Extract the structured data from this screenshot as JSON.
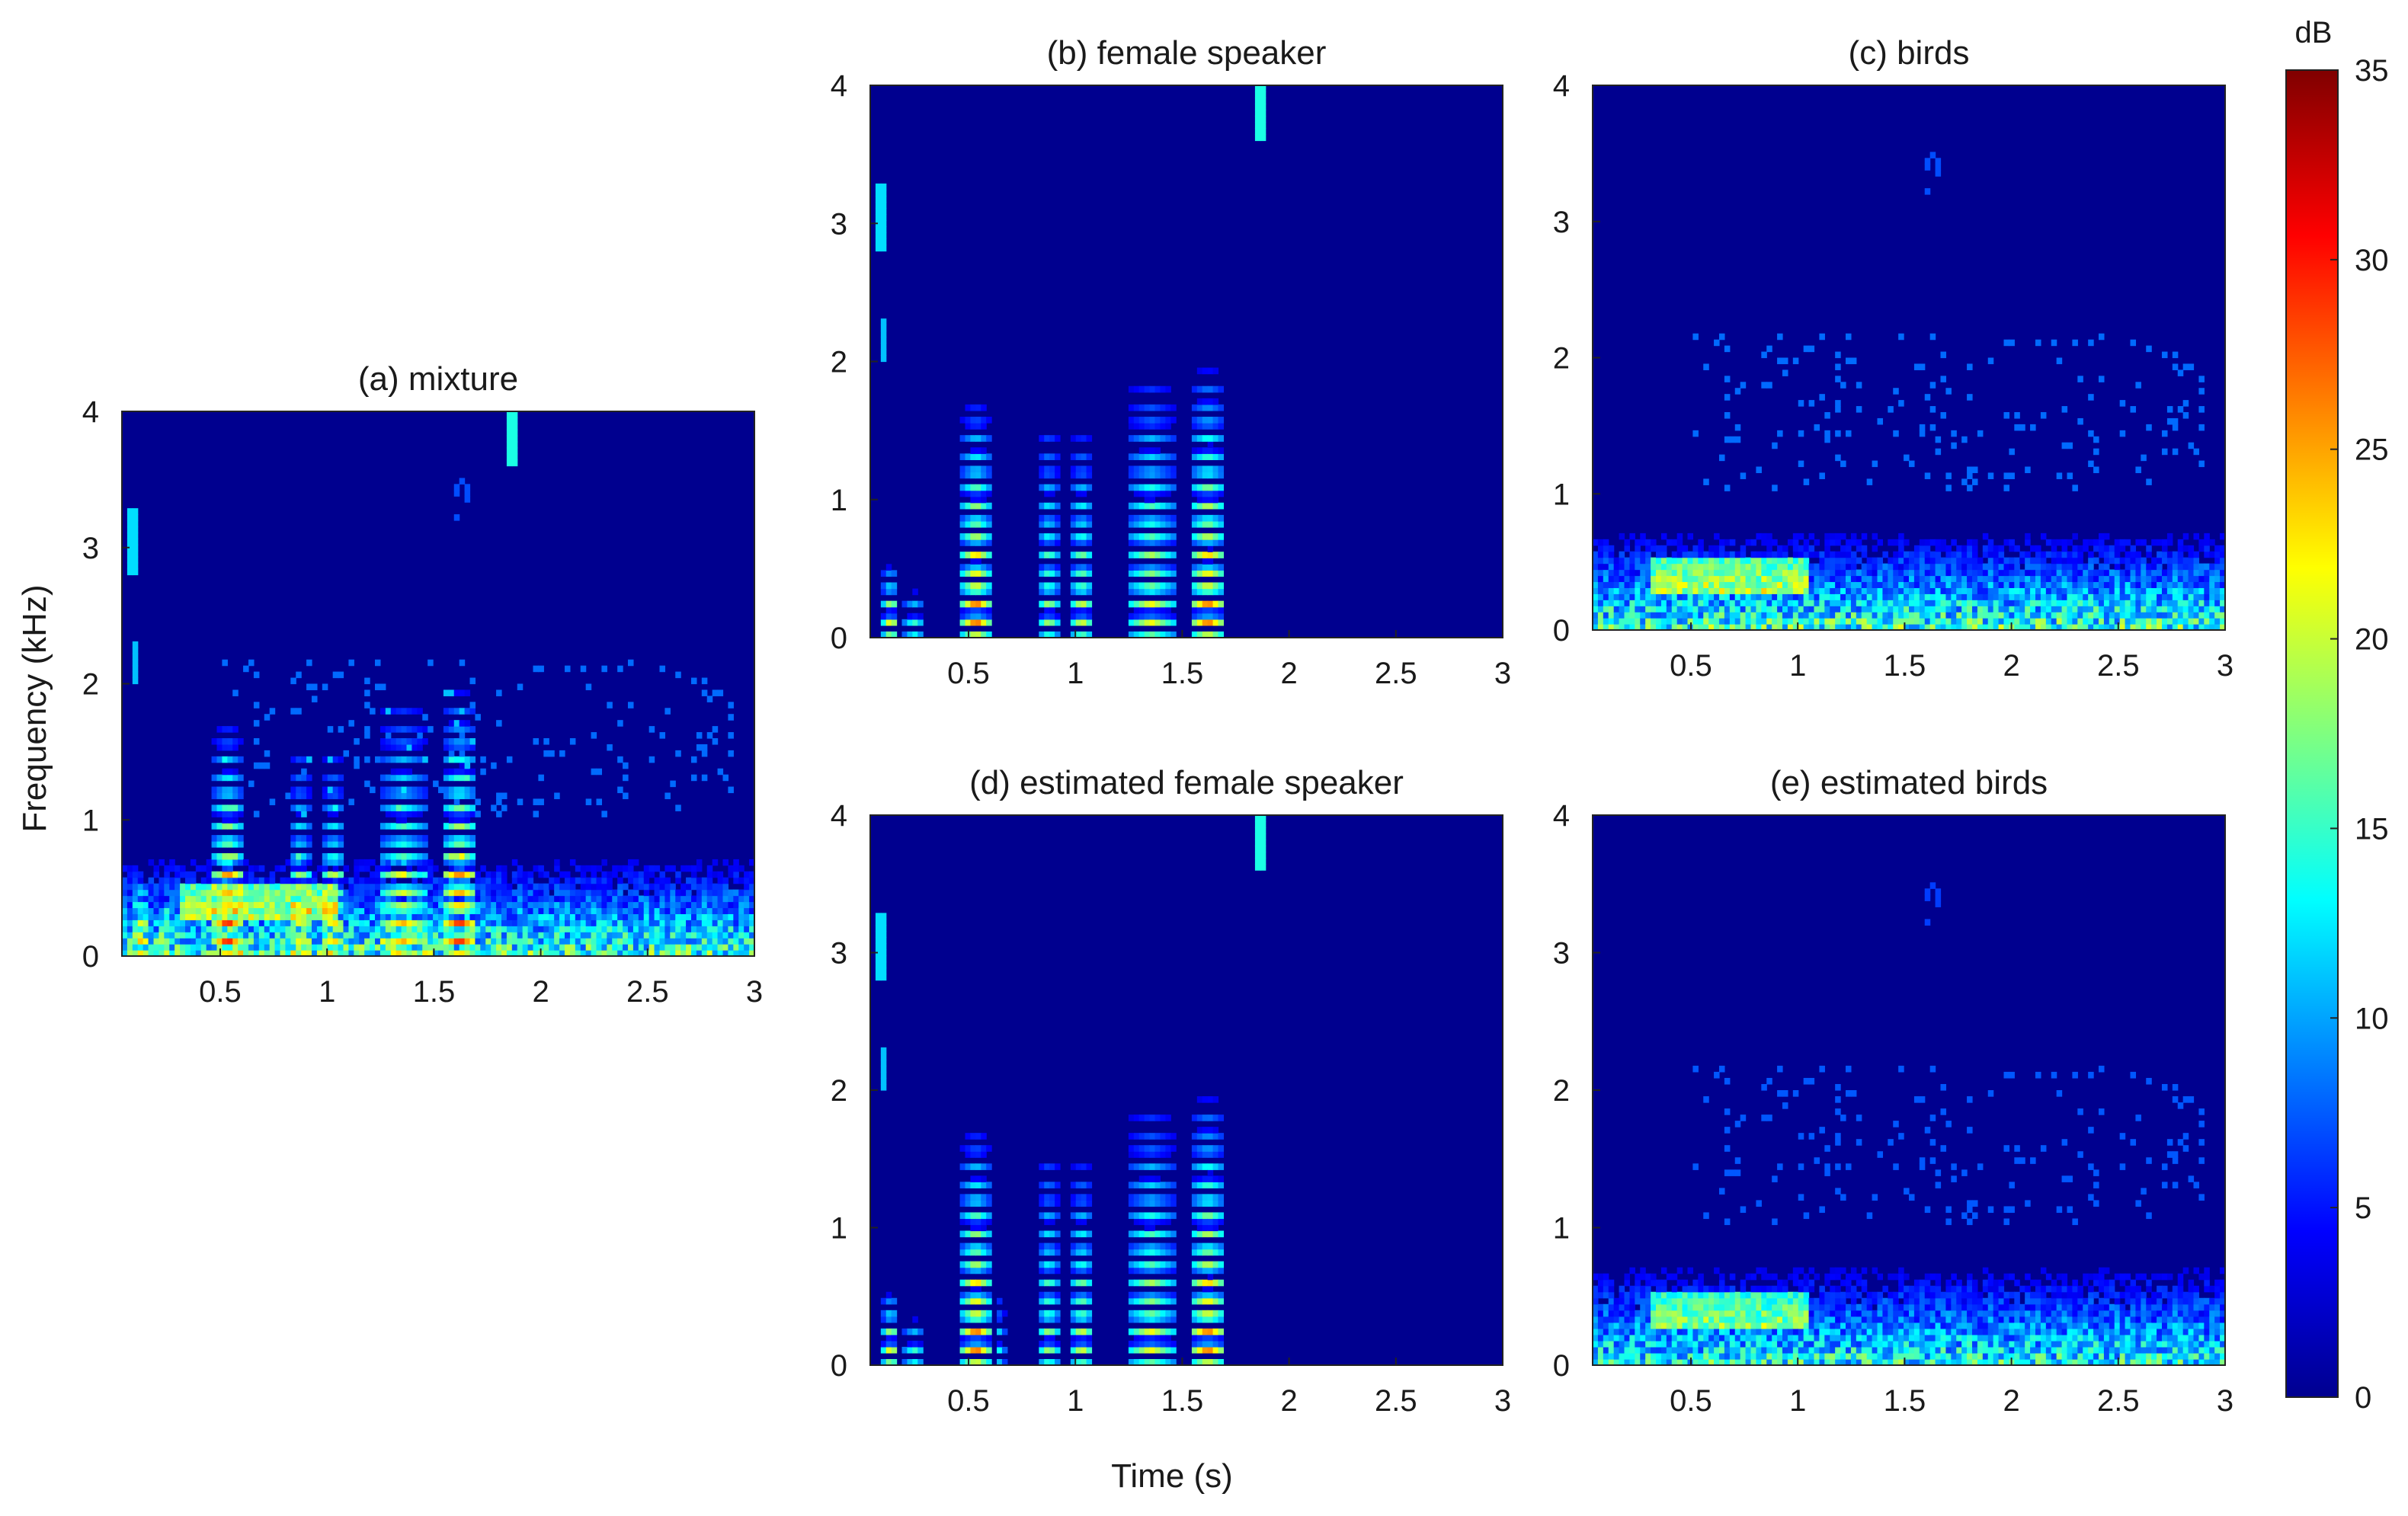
{
  "figure": {
    "ylabel": "Frequency (kHz)",
    "xlabel": "Time (s)",
    "colormap": "jet"
  },
  "colorbar": {
    "label": "dB",
    "range": [
      0,
      35
    ],
    "ticks": [
      0,
      5,
      10,
      15,
      20,
      25,
      30,
      35
    ]
  },
  "chart_data": [
    {
      "type": "heatmap",
      "title": "(a) mixture",
      "xlim": [
        0.04,
        3.0
      ],
      "ylim": [
        0,
        4
      ],
      "xticks": [
        0.5,
        1,
        1.5,
        2,
        2.5,
        3
      ],
      "yticks": [
        0,
        1,
        2,
        3,
        4
      ],
      "xlabel": "",
      "ylabel": "Frequency (kHz)",
      "value_range_db": [
        0,
        35
      ],
      "contains": [
        "female speaker",
        "birds"
      ]
    },
    {
      "type": "heatmap",
      "title": "(b) female speaker",
      "xlim": [
        0.04,
        3.0
      ],
      "ylim": [
        0,
        4
      ],
      "xticks": [
        0.5,
        1,
        1.5,
        2,
        2.5,
        3
      ],
      "yticks": [
        0,
        1,
        2,
        3,
        4
      ],
      "xlabel": "",
      "ylabel": "",
      "value_range_db": [
        0,
        35
      ],
      "contains": [
        "female speaker"
      ]
    },
    {
      "type": "heatmap",
      "title": "(c) birds",
      "xlim": [
        0.04,
        3.0
      ],
      "ylim": [
        0,
        4
      ],
      "xticks": [
        0.5,
        1,
        1.5,
        2,
        2.5,
        3
      ],
      "yticks": [
        0,
        1,
        2,
        3,
        4
      ],
      "xlabel": "",
      "ylabel": "",
      "value_range_db": [
        0,
        35
      ],
      "contains": [
        "birds"
      ]
    },
    {
      "type": "heatmap",
      "title": "(d) estimated female speaker",
      "xlim": [
        0.04,
        3.0
      ],
      "ylim": [
        0,
        4
      ],
      "xticks": [
        0.5,
        1,
        1.5,
        2,
        2.5,
        3
      ],
      "yticks": [
        0,
        1,
        2,
        3,
        4
      ],
      "xlabel": "Time (s)",
      "ylabel": "",
      "value_range_db": [
        0,
        35
      ],
      "contains": [
        "female speaker"
      ]
    },
    {
      "type": "heatmap",
      "title": "(e) estimated birds",
      "xlim": [
        0.04,
        3.0
      ],
      "ylim": [
        0,
        4
      ],
      "xticks": [
        0.5,
        1,
        1.5,
        2,
        2.5,
        3
      ],
      "yticks": [
        0,
        1,
        2,
        3,
        4
      ],
      "xlabel": "",
      "ylabel": "",
      "value_range_db": [
        0,
        35
      ],
      "contains": [
        "birds"
      ]
    }
  ]
}
